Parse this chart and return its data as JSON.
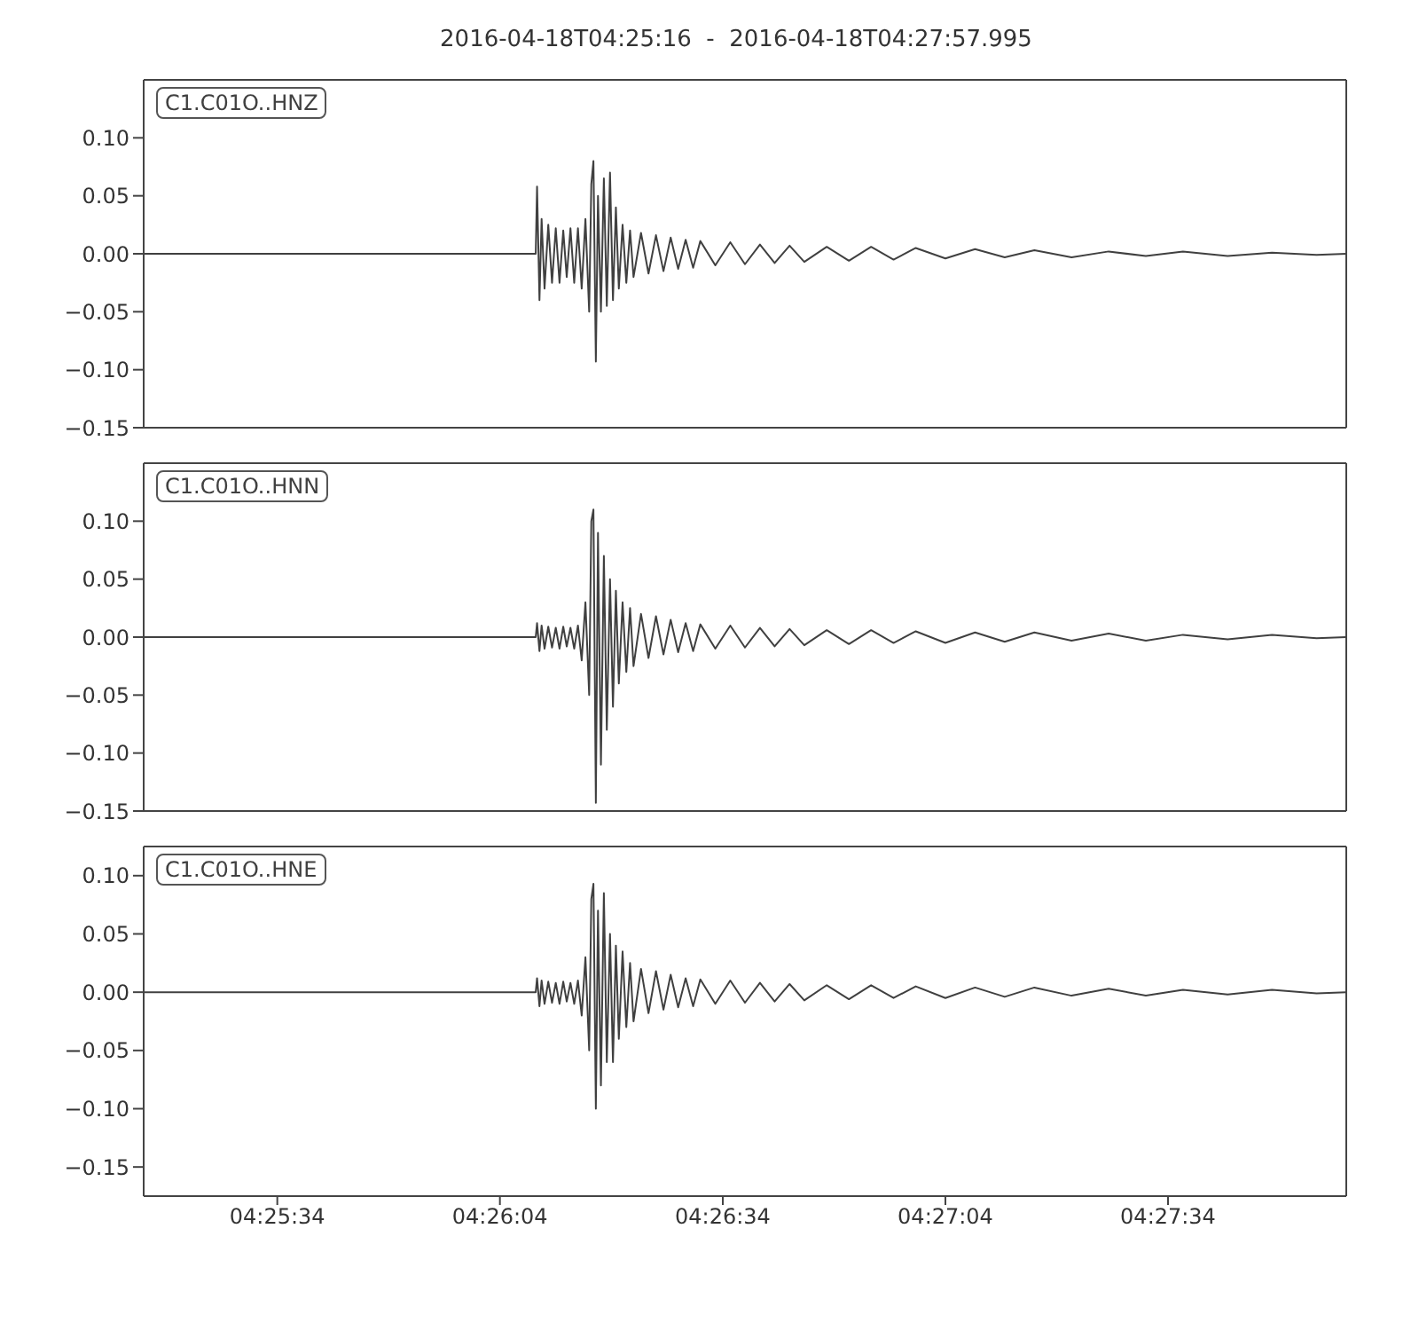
{
  "chart_data": [
    {
      "type": "line",
      "title": "2016-04-18T04:25:16  -  2016-04-18T04:27:57.995",
      "legend": "top left",
      "tick_labels": "y",
      "xlim": [
        4.42111,
        4.46611
      ],
      "xticks": [
        {
          "value": 4.42611,
          "label": null
        },
        {
          "value": 4.43444,
          "label": null
        },
        {
          "value": 4.44278,
          "label": null
        },
        {
          "value": 4.45111,
          "label": null
        },
        {
          "value": 4.45944,
          "label": null
        }
      ],
      "ylim": [
        -0.15,
        0.15
      ],
      "yticks": [
        {
          "value": -0.15,
          "label": "−0.15"
        },
        {
          "value": -0.1,
          "label": "−0.10"
        },
        {
          "value": -0.05,
          "label": "−0.05"
        },
        {
          "value": 0,
          "label": "0.00"
        },
        {
          "value": 0.05,
          "label": "0.05"
        },
        {
          "value": 0.1,
          "label": "0.10"
        }
      ],
      "x": [
        4.42111,
        4.43578,
        4.43583,
        4.43592,
        4.436,
        4.43611,
        4.43625,
        4.43639,
        4.43653,
        4.43667,
        4.43681,
        4.43694,
        4.43708,
        4.43722,
        4.43736,
        4.4375,
        4.43764,
        4.43778,
        4.43786,
        4.43794,
        4.43803,
        4.43811,
        4.43822,
        4.43833,
        4.43844,
        4.43856,
        4.43867,
        4.43878,
        4.43889,
        4.43903,
        4.43917,
        4.43931,
        4.43944,
        4.43972,
        4.44,
        4.44028,
        4.44056,
        4.44083,
        4.44111,
        4.44139,
        4.44167,
        4.44194,
        4.4425,
        4.44306,
        4.44361,
        4.44417,
        4.44472,
        4.44528,
        4.44583,
        4.44667,
        4.4475,
        4.44833,
        4.44917,
        4.45,
        4.45111,
        4.45222,
        4.45333,
        4.45444,
        4.45583,
        4.45722,
        4.45861,
        4.46,
        4.46167,
        4.46333,
        4.465,
        4.46611
      ],
      "series": [
        {
          "name": "C1.C01O..HNZ",
          "color": "#404040",
          "values": [
            0,
            0,
            0.058,
            -0.04,
            0.03,
            -0.03,
            0.025,
            -0.025,
            0.022,
            -0.025,
            0.02,
            -0.02,
            0.022,
            -0.025,
            0.022,
            -0.03,
            0.03,
            -0.05,
            0.06,
            0.08,
            -0.093,
            0.05,
            -0.05,
            0.065,
            -0.045,
            0.07,
            -0.04,
            0.04,
            -0.03,
            0.025,
            -0.025,
            0.02,
            -0.02,
            0.018,
            -0.017,
            0.016,
            -0.015,
            0.014,
            -0.013,
            0.012,
            -0.012,
            0.011,
            -0.01,
            0.01,
            -0.009,
            0.008,
            -0.008,
            0.007,
            -0.007,
            0.006,
            -0.006,
            0.006,
            -0.005,
            0.005,
            -0.004,
            0.004,
            -0.003,
            0.003,
            -0.003,
            0.002,
            -0.002,
            0.002,
            -0.002,
            0.001,
            -0.001,
            0
          ]
        }
      ]
    },
    {
      "type": "line",
      "legend": "top left",
      "tick_labels": "y",
      "xlim": [
        4.42111,
        4.46611
      ],
      "xticks": [
        {
          "value": 4.42611,
          "label": null
        },
        {
          "value": 4.43444,
          "label": null
        },
        {
          "value": 4.44278,
          "label": null
        },
        {
          "value": 4.45111,
          "label": null
        },
        {
          "value": 4.45944,
          "label": null
        }
      ],
      "ylim": [
        -0.15,
        0.15
      ],
      "yticks": [
        {
          "value": -0.15,
          "label": "−0.15"
        },
        {
          "value": -0.1,
          "label": "−0.10"
        },
        {
          "value": -0.05,
          "label": "−0.05"
        },
        {
          "value": 0,
          "label": "0.00"
        },
        {
          "value": 0.05,
          "label": "0.05"
        },
        {
          "value": 0.1,
          "label": "0.10"
        }
      ],
      "x": [
        4.42111,
        4.43578,
        4.43583,
        4.43592,
        4.436,
        4.43611,
        4.43625,
        4.43639,
        4.43653,
        4.43667,
        4.43681,
        4.43694,
        4.43708,
        4.43722,
        4.43736,
        4.4375,
        4.43764,
        4.43778,
        4.43786,
        4.43794,
        4.43803,
        4.43811,
        4.43822,
        4.43833,
        4.43844,
        4.43856,
        4.43867,
        4.43878,
        4.43889,
        4.43903,
        4.43917,
        4.43931,
        4.43944,
        4.43972,
        4.44,
        4.44028,
        4.44056,
        4.44083,
        4.44111,
        4.44139,
        4.44167,
        4.44194,
        4.4425,
        4.44306,
        4.44361,
        4.44417,
        4.44472,
        4.44528,
        4.44583,
        4.44667,
        4.4475,
        4.44833,
        4.44917,
        4.45,
        4.45111,
        4.45222,
        4.45333,
        4.45444,
        4.45583,
        4.45722,
        4.45861,
        4.46,
        4.46167,
        4.46333,
        4.465,
        4.46611
      ],
      "series": [
        {
          "name": "C1.C01O..HNN",
          "color": "#404040",
          "values": [
            0,
            0,
            0.012,
            -0.012,
            0.01,
            -0.01,
            0.009,
            -0.009,
            0.008,
            -0.01,
            0.009,
            -0.008,
            0.008,
            -0.01,
            0.01,
            -0.02,
            0.03,
            -0.05,
            0.1,
            0.11,
            -0.143,
            0.09,
            -0.11,
            0.07,
            -0.08,
            0.05,
            -0.06,
            0.04,
            -0.04,
            0.03,
            -0.03,
            0.025,
            -0.025,
            0.02,
            -0.018,
            0.018,
            -0.015,
            0.015,
            -0.013,
            0.012,
            -0.012,
            0.011,
            -0.01,
            0.01,
            -0.009,
            0.008,
            -0.008,
            0.007,
            -0.007,
            0.006,
            -0.006,
            0.006,
            -0.005,
            0.005,
            -0.005,
            0.004,
            -0.004,
            0.004,
            -0.003,
            0.003,
            -0.003,
            0.002,
            -0.002,
            0.002,
            -0.001,
            0
          ]
        }
      ]
    },
    {
      "type": "line",
      "legend": "top left",
      "xlim": [
        4.42111,
        4.46611
      ],
      "xticks": [
        {
          "value": 4.42611,
          "label": "04:25:34"
        },
        {
          "value": 4.43444,
          "label": "04:26:04"
        },
        {
          "value": 4.44278,
          "label": "04:26:34"
        },
        {
          "value": 4.45111,
          "label": "04:27:04"
        },
        {
          "value": 4.45944,
          "label": "04:27:34"
        }
      ],
      "ylim": [
        -0.175,
        0.125
      ],
      "yticks": [
        {
          "value": -0.15,
          "label": "−0.15"
        },
        {
          "value": -0.1,
          "label": "−0.10"
        },
        {
          "value": -0.05,
          "label": "−0.05"
        },
        {
          "value": 0,
          "label": "0.00"
        },
        {
          "value": 0.05,
          "label": "0.05"
        },
        {
          "value": 0.1,
          "label": "0.10"
        }
      ],
      "x": [
        4.42111,
        4.43578,
        4.43583,
        4.43592,
        4.436,
        4.43611,
        4.43625,
        4.43639,
        4.43653,
        4.43667,
        4.43681,
        4.43694,
        4.43708,
        4.43722,
        4.43736,
        4.4375,
        4.43764,
        4.43778,
        4.43786,
        4.43794,
        4.43803,
        4.43811,
        4.43822,
        4.43833,
        4.43844,
        4.43856,
        4.43867,
        4.43878,
        4.43889,
        4.43903,
        4.43917,
        4.43931,
        4.43944,
        4.43972,
        4.44,
        4.44028,
        4.44056,
        4.44083,
        4.44111,
        4.44139,
        4.44167,
        4.44194,
        4.4425,
        4.44306,
        4.44361,
        4.44417,
        4.44472,
        4.44528,
        4.44583,
        4.44667,
        4.4475,
        4.44833,
        4.44917,
        4.45,
        4.45111,
        4.45222,
        4.45333,
        4.45444,
        4.45583,
        4.45722,
        4.45861,
        4.46,
        4.46167,
        4.46333,
        4.465,
        4.46611
      ],
      "series": [
        {
          "name": "C1.C01O..HNE",
          "color": "#404040",
          "values": [
            0,
            0,
            0.012,
            -0.012,
            0.01,
            -0.01,
            0.009,
            -0.009,
            0.008,
            -0.01,
            0.009,
            -0.008,
            0.008,
            -0.01,
            0.01,
            -0.02,
            0.03,
            -0.05,
            0.08,
            0.093,
            -0.1,
            0.07,
            -0.08,
            0.085,
            -0.06,
            0.05,
            -0.06,
            0.04,
            -0.04,
            0.035,
            -0.03,
            0.025,
            -0.025,
            0.02,
            -0.018,
            0.018,
            -0.015,
            0.015,
            -0.013,
            0.012,
            -0.012,
            0.011,
            -0.01,
            0.01,
            -0.009,
            0.008,
            -0.008,
            0.007,
            -0.007,
            0.006,
            -0.006,
            0.006,
            -0.005,
            0.005,
            -0.005,
            0.004,
            -0.004,
            0.004,
            -0.003,
            0.003,
            -0.003,
            0.002,
            -0.002,
            0.002,
            -0.001,
            0
          ]
        }
      ]
    }
  ]
}
